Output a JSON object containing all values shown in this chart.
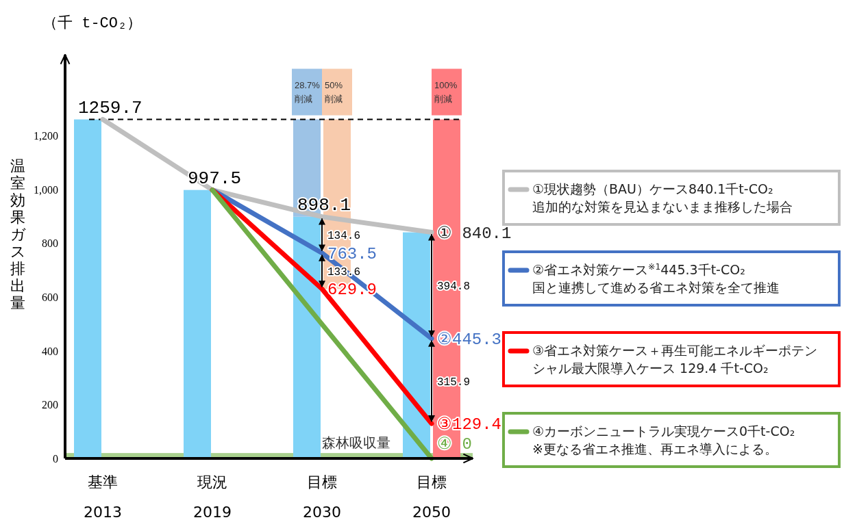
{
  "chart_data": {
    "type": "bar",
    "categories": [
      "基準\n2013",
      "現況\n2019",
      "目標\n2030",
      "目標\n2050"
    ],
    "ylabel": "温室効果ガス排出量",
    "ylim": [
      0,
      1500
    ],
    "yticks": [
      0,
      200,
      400,
      600,
      800,
      {
        "value": 1000,
        "label": "1,000"
      },
      {
        "value": 1200,
        "label": "1,200"
      }
    ],
    "legend": "right",
    "series": [
      {
        "type": "bar",
        "color": "#7fd3f7",
        "values": [
          1259.7,
          997.5,
          898.1,
          840.1
        ],
        "value_labels": [
          "1259.7",
          "997.5",
          "898.1",
          null
        ]
      },
      {
        "type": "bar",
        "name": "50%\n削減",
        "color": "#f8cbad",
        "base": [
          null,
          null,
          629.9,
          null
        ],
        "values": [
          null,
          null,
          629.8,
          null
        ]
      },
      {
        "type": "bar",
        "name": "28.7%\n削減",
        "color": "#9dc3e6",
        "base": [
          null,
          null,
          898.1,
          null
        ],
        "values": [
          null,
          null,
          361.6,
          null
        ]
      },
      {
        "type": "bar",
        "name": "100%\n削減",
        "color": "#ff7c80",
        "base": [
          null,
          null,
          null,
          0
        ],
        "values": [
          null,
          null,
          null,
          1259.7
        ]
      },
      {
        "type": "line",
        "name": "①現状趨勢（BAU）ケース840.1千t-CO₂\n追加的な対策を見込まないまま推移した場合",
        "color": "#bfbfbf",
        "values": [
          1259.7,
          997.5,
          898.1,
          840.1
        ],
        "value_labels": [
          null,
          null,
          null,
          "① 840.1"
        ]
      },
      {
        "type": "line",
        "name": "②省エネ対策ケース$^{※1}$445.3千t-CO₂\n国と連携して進める省エネ対策を全て推進",
        "color": "#4472c4",
        "values": [
          null,
          997.5,
          763.5,
          445.3
        ],
        "value_labels": [
          null,
          null,
          "763.5",
          "②445.3"
        ]
      },
      {
        "type": "line",
        "name": "③省エネ対策ケース＋再生可能エネルギーポテンシャル最大限導入ケース 129.4 千t-CO₂",
        "color": "#ff0000",
        "values": [
          null,
          997.5,
          629.9,
          129.4
        ],
        "value_labels": [
          null,
          null,
          "629.9",
          "③129.4"
        ]
      },
      {
        "type": "line",
        "name": "④カーボンニュートラル実現ケース0千t-CO₂\n※更なる省エネ推進、再エネ導入による。",
        "color": "#70ad47",
        "values": [
          null,
          997.5,
          null,
          0
        ],
        "value_labels": [
          null,
          null,
          null,
          "④ 0"
        ]
      }
    ],
    "ref_lines": [
      {
        "axis": "y",
        "value": 1259.7,
        "line_style": "dashed",
        "color": "#000000"
      }
    ],
    "bands": [
      {
        "axis": "y",
        "from": 0,
        "to": 20,
        "label": "森林吸収量",
        "color": "#a9d18e"
      }
    ],
    "annotations": [
      "（千 t-CO₂）",
      {
        "text": "134.6",
        "x": "目標\n2030",
        "y": 831.3
      },
      {
        "text": "133.6",
        "x": "目標\n2030",
        "y": 696.7
      },
      {
        "text": "394.8",
        "x": "目標\n2050",
        "y": 642.7
      },
      {
        "text": "315.9",
        "x": "目標\n2050",
        "y": 287.35
      }
    ]
  }
}
